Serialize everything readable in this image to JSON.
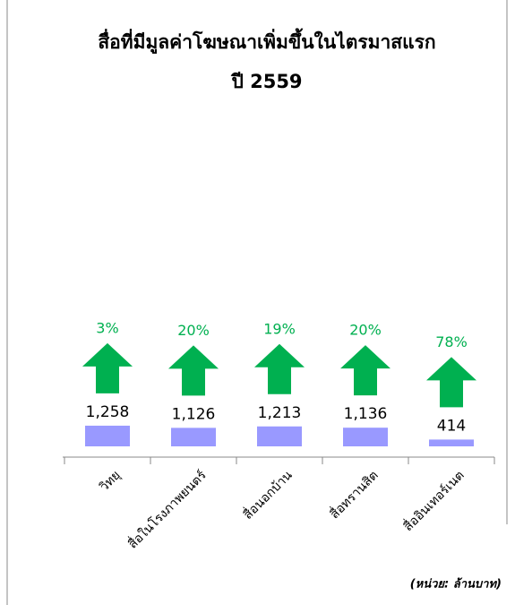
{
  "chart_data": {
    "type": "bar",
    "title": [
      "สื่อที่มีมูลค่าโฆษณาเพิ่มขึ้นในไตรมาสแรก",
      "ปี 2559"
    ],
    "categories": [
      "วิทยุ",
      "สื่อในโรงภาพยนตร์",
      "สื่อนอกบ้าน",
      "สื่อทรานสิต",
      "สื่ออินเทอร์เนต"
    ],
    "values": [
      1258,
      1126,
      1213,
      1136,
      414
    ],
    "value_labels": [
      "1,258",
      "1,126",
      "1,213",
      "1,136",
      "414"
    ],
    "color": "#9999ff",
    "growth": {
      "values": [
        3,
        20,
        19,
        20,
        78
      ],
      "value_labels": [
        "3%",
        "20%",
        "19%",
        "20%",
        "78%"
      ],
      "color": "#00b050"
    },
    "ylim": [
      0,
      12000
    ],
    "note": "(หน่วย: ล้านบาท)"
  }
}
